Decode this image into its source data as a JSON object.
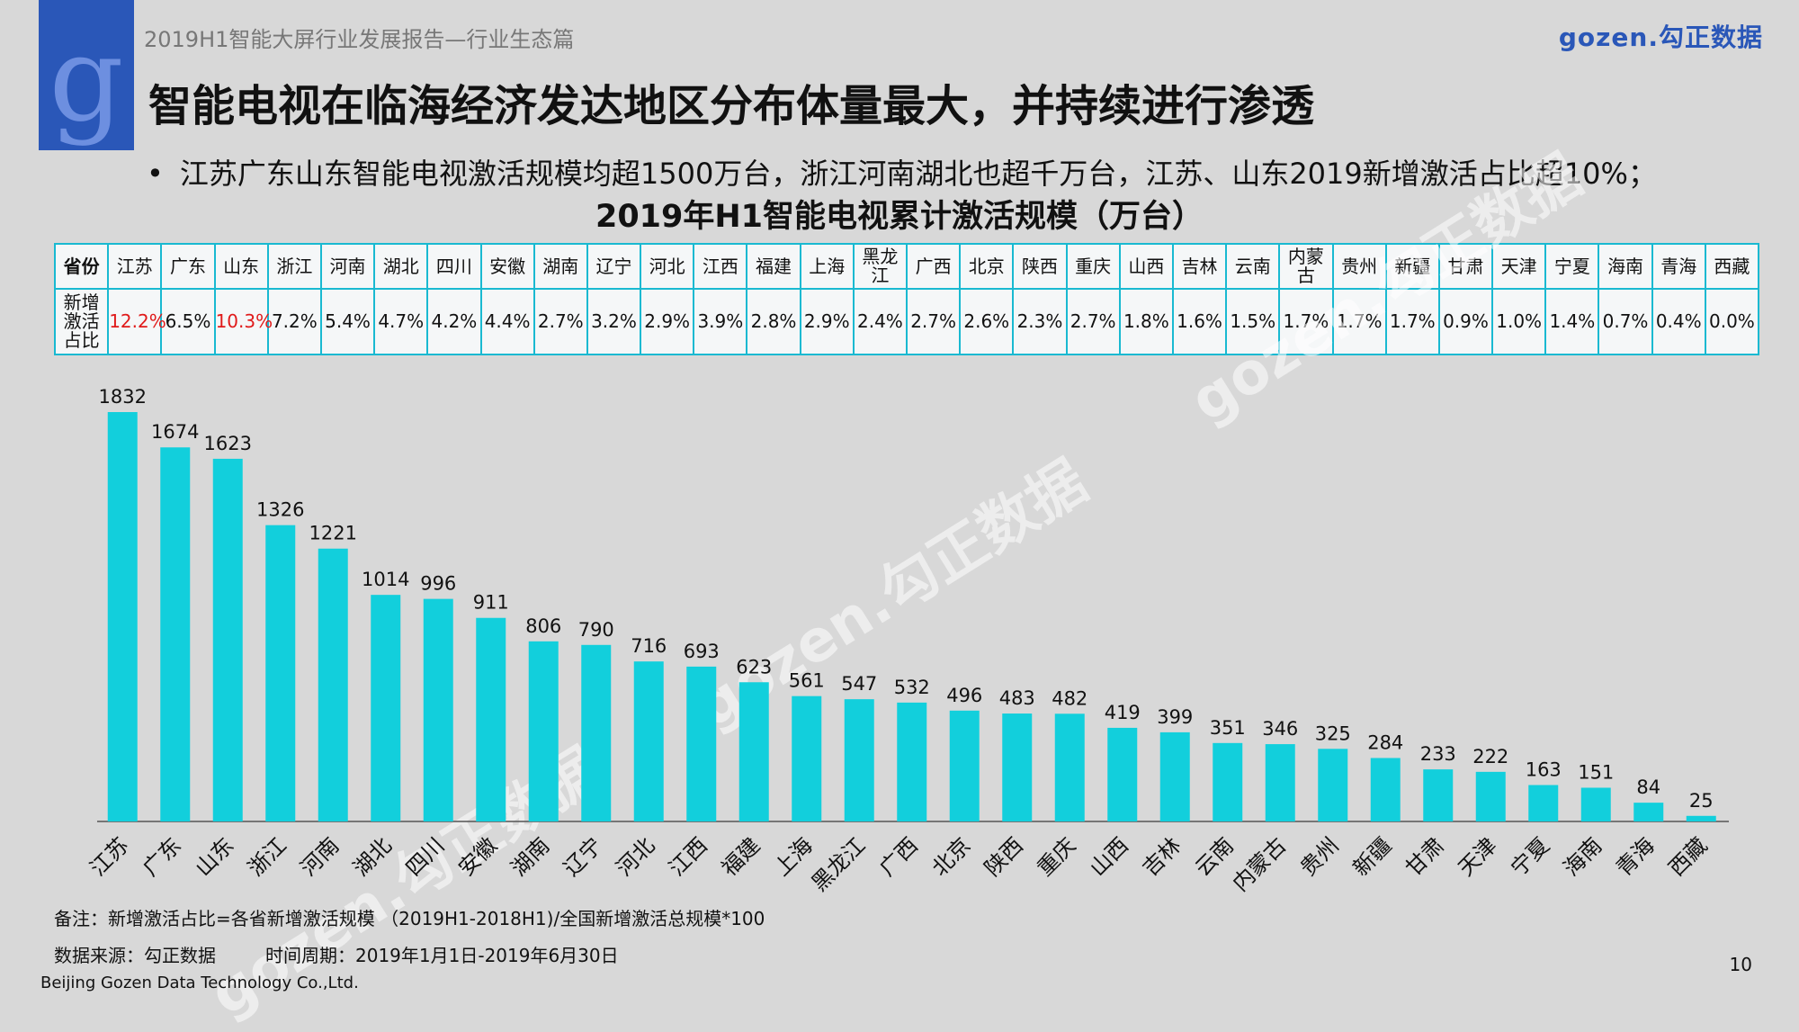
{
  "header": {
    "report_title": "2019H1智能大屏行业发展报告—行业生态篇",
    "brand": "gozen.勾正数据",
    "logo_letter": "g"
  },
  "main_title": "智能电视在临海经济发达地区分布体量最大，并持续进行渗透",
  "bullet": "江苏广东山东智能电视激活规模均超1500万台，浙江河南湖北也超千万台，江苏、山东2019新增激活占比超10%；",
  "watermark_text": "gozen.勾正数据",
  "table": {
    "row1_header": "省份",
    "row2_header": "新增激活占比",
    "provinces": [
      "江苏",
      "广东",
      "山东",
      "浙江",
      "河南",
      "湖北",
      "四川",
      "安徽",
      "湖南",
      "辽宁",
      "河北",
      "江西",
      "福建",
      "上海",
      "黑龙江",
      "广西",
      "北京",
      "陕西",
      "重庆",
      "山西",
      "吉林",
      "云南",
      "内蒙古",
      "贵州",
      "新疆",
      "甘肃",
      "天津",
      "宁夏",
      "海南",
      "青海",
      "西藏"
    ],
    "shares": [
      "12.2%",
      "6.5%",
      "10.3%",
      "7.2%",
      "5.4%",
      "4.7%",
      "4.2%",
      "4.4%",
      "2.7%",
      "3.2%",
      "2.9%",
      "3.9%",
      "2.8%",
      "2.9%",
      "2.4%",
      "2.7%",
      "2.6%",
      "2.3%",
      "2.7%",
      "1.8%",
      "1.6%",
      "1.5%",
      "1.7%",
      "1.7%",
      "1.7%",
      "0.9%",
      "1.0%",
      "1.4%",
      "0.7%",
      "0.4%",
      "0.0%"
    ],
    "highlight_color": "#e01b1b"
  },
  "chart_data": {
    "type": "bar",
    "title": "2019年H1智能电视累计激活规模（万台）",
    "categories": [
      "江苏",
      "广东",
      "山东",
      "浙江",
      "河南",
      "湖北",
      "四川",
      "安徽",
      "湖南",
      "辽宁",
      "河北",
      "江西",
      "福建",
      "上海",
      "黑龙江",
      "广西",
      "北京",
      "陕西",
      "重庆",
      "山西",
      "吉林",
      "云南",
      "内蒙古",
      "贵州",
      "新疆",
      "甘肃",
      "天津",
      "宁夏",
      "海南",
      "青海",
      "西藏"
    ],
    "values": [
      1832,
      1674,
      1623,
      1326,
      1221,
      1014,
      996,
      911,
      806,
      790,
      716,
      693,
      623,
      561,
      547,
      532,
      496,
      483,
      482,
      419,
      399,
      351,
      346,
      325,
      284,
      233,
      222,
      163,
      151,
      84,
      25
    ],
    "xlabel": "",
    "ylabel": "",
    "ylim": [
      0,
      1832
    ],
    "bar_color": "#12cfdc",
    "grid": false,
    "legend": "none"
  },
  "footer": {
    "note": "备注：新增激活占比=各省新增激活规模 （2019H1-2018H1)/全国新增激活总规模*100",
    "source": "数据来源：勾正数据",
    "period": "时间周期：2019年1月1日-2019年6月30日",
    "company": "Beijing Gozen Data Technology Co.,Ltd.",
    "page_number": "10"
  }
}
